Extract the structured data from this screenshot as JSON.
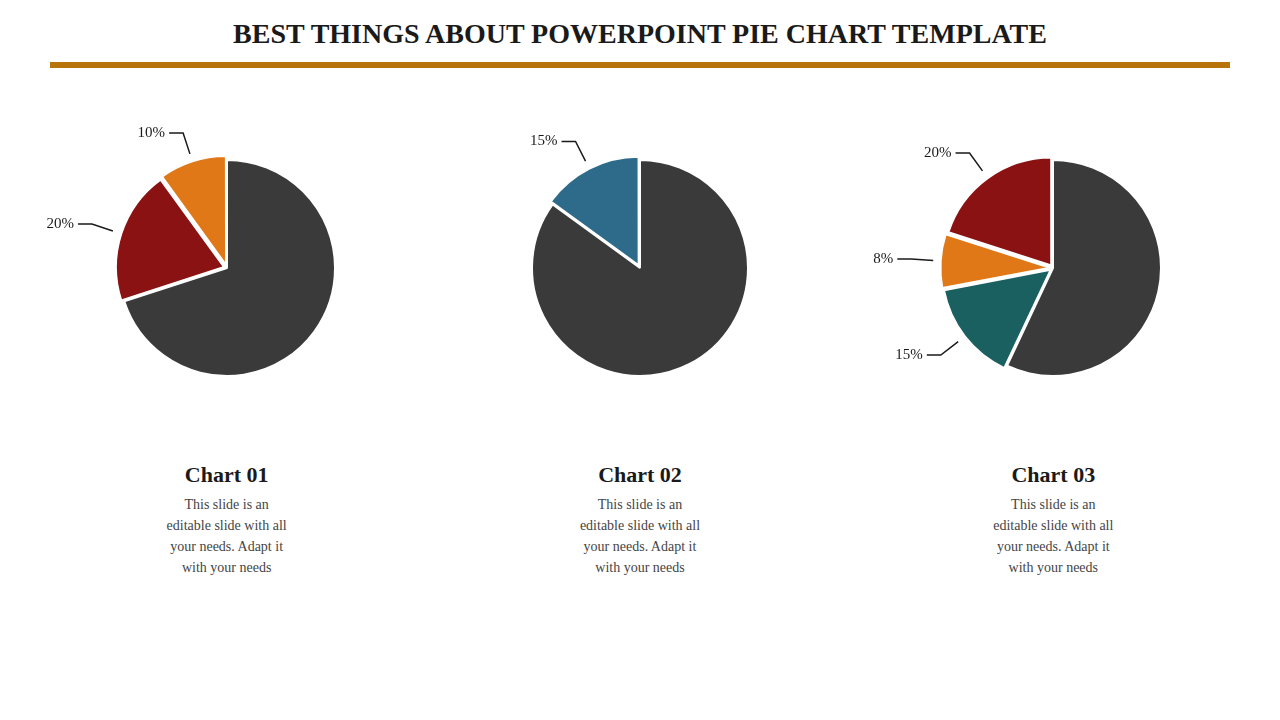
{
  "title": "BEST THINGS ABOUT POWERPOINT PIE CHART TEMPLATE",
  "chart_data": [
    {
      "type": "pie",
      "title": "Chart 01",
      "subtitle": "This slide is an\neditable slide with all\nyour needs. Adapt it\nwith your needs",
      "values": [
        70,
        20,
        10
      ],
      "value_labels": [
        null,
        "20%",
        "10%"
      ],
      "colors": [
        "#3a3a3a",
        "#8b1212",
        "#e07818"
      ],
      "data_labels": true
    },
    {
      "type": "pie",
      "title": "Chart 02",
      "subtitle": "This slide is an\neditable slide with all\nyour needs. Adapt it\nwith your needs",
      "values": [
        85,
        15
      ],
      "value_labels": [
        null,
        "15%"
      ],
      "colors": [
        "#3a3a3a",
        "#2e6b8a"
      ],
      "data_labels": true
    },
    {
      "type": "pie",
      "title": "Chart 03",
      "subtitle": "This slide is an\neditable slide with all\nyour needs. Adapt it\nwith your needs",
      "values": [
        57,
        15,
        8,
        20
      ],
      "value_labels": [
        null,
        "15%",
        "8%",
        "20%"
      ],
      "colors": [
        "#3a3a3a",
        "#1a6060",
        "#e07818",
        "#8b1212"
      ],
      "data_labels": true
    }
  ]
}
